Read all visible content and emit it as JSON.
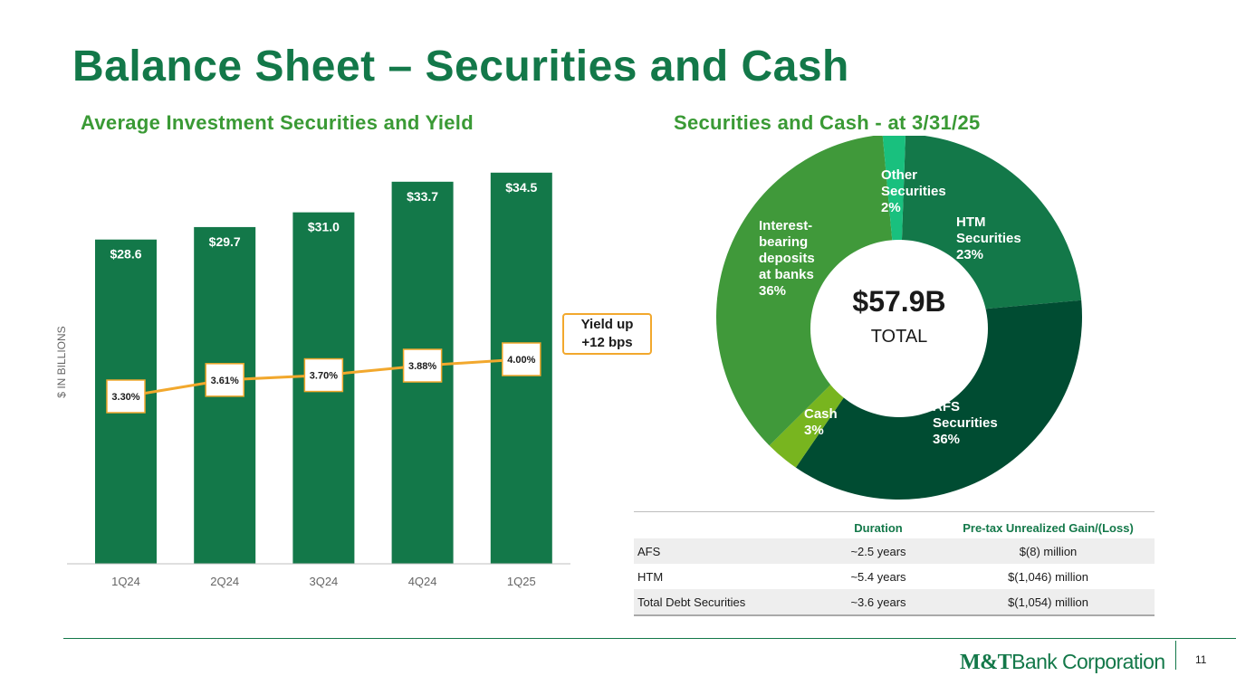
{
  "title": "Balance Sheet – Securities and Cash",
  "bar_chart": {
    "subtitle": "Average Investment Securities and Yield",
    "ylabel": "$ IN BILLIONS",
    "callout": [
      "Yield up",
      "+12 bps"
    ]
  },
  "pie_chart": {
    "subtitle": "Securities and Cash - at 3/31/25",
    "center_value": "$57.9B",
    "center_label": "TOTAL"
  },
  "chart_data": [
    {
      "type": "bar",
      "title": "Average Investment Securities and Yield",
      "ylabel": "$ IN BILLIONS",
      "categories": [
        "1Q24",
        "2Q24",
        "3Q24",
        "4Q24",
        "1Q25"
      ],
      "series": [
        {
          "values": [
            28.6,
            29.7,
            31.0,
            33.7,
            34.5
          ],
          "labels": [
            "$28.6",
            "$29.7",
            "$31.0",
            "$33.7",
            "$34.5"
          ],
          "color": "#137849"
        },
        {
          "type": "line",
          "values": [
            3.3,
            3.61,
            3.7,
            3.88,
            4.0
          ],
          "labels": [
            "3.30%",
            "3.61%",
            "3.70%",
            "3.88%",
            "4.00%"
          ],
          "color": "#f2a82d"
        }
      ],
      "ylim": [
        0,
        36
      ],
      "grid": false
    },
    {
      "type": "pie",
      "title": "Securities and Cash - at 3/31/25",
      "slices": [
        {
          "label": [
            "HTM",
            "Securities",
            "23%"
          ],
          "value": 23,
          "color": "#137849"
        },
        {
          "label": [
            "AFS",
            "Securities",
            "36%"
          ],
          "value": 36,
          "color": "#004c32"
        },
        {
          "label": [
            "Cash",
            "3%"
          ],
          "value": 3,
          "color": "#78b51f"
        },
        {
          "label": [
            "Interest-",
            "bearing",
            "deposits",
            "at banks",
            "36%"
          ],
          "value": 36,
          "color": "#40993a"
        },
        {
          "label": [
            "Other",
            "Securities",
            "2%"
          ],
          "value": 2,
          "color": "#19c07e"
        }
      ],
      "center_value": "$57.9B",
      "center_label": "TOTAL"
    }
  ],
  "table": {
    "headers": [
      "",
      "Duration",
      "Pre-tax Unrealized Gain/(Loss)"
    ],
    "rows": [
      [
        "AFS",
        "~2.5 years",
        "$(8) million"
      ],
      [
        "HTM",
        "~5.4 years",
        "$(1,046) million"
      ],
      [
        "Total Debt Securities",
        "~3.6 years",
        "$(1,054) million"
      ]
    ]
  },
  "footer": {
    "logo_brand": "M&T",
    "logo_text": "Bank Corporation",
    "page_number": "11"
  }
}
